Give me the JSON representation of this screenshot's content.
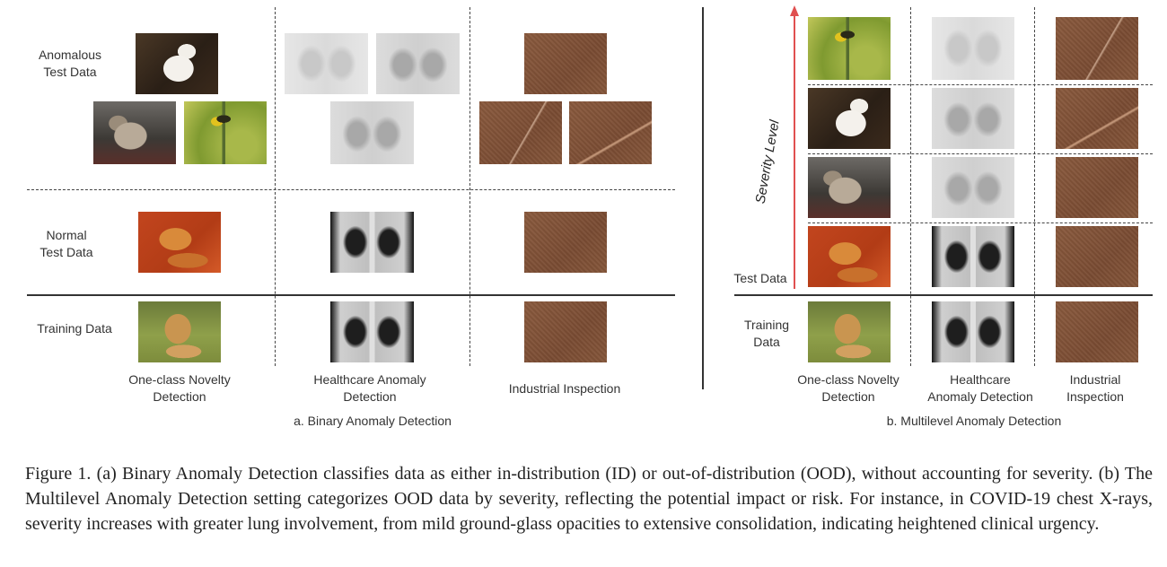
{
  "panel_a": {
    "row_labels": {
      "anomalous": "Anomalous\nTest Data",
      "normal": "Normal\nTest Data",
      "training": "Training Data"
    },
    "columns": [
      "One-class Novelty\nDetection",
      "Healthcare Anomaly\nDetection",
      "Industrial Inspection"
    ],
    "title": "a. Binary Anomaly Detection"
  },
  "panel_b": {
    "axis_label": "Severity Level",
    "test_label": "Test Data",
    "training_label": "Training\nData",
    "columns": [
      "One-class Novelty\nDetection",
      "Healthcare\nAnomaly Detection",
      "Industrial\nInspection"
    ],
    "title": "b. Multilevel Anomaly Detection"
  },
  "caption": "Figure 1.  (a) Binary Anomaly Detection classifies data as either in-distribution (ID) or out-of-distribution (OOD), without accounting for severity. (b) The Multilevel Anomaly Detection setting categorizes OOD data by severity, reflecting the potential impact or risk. For instance, in COVID-19 chest X-rays, severity increases with greater lung involvement, from mild ground-glass opacities to extensive consolidation, indicating heightened clinical urgency.",
  "colors": {
    "arrow": "#e05050",
    "fabric": "#7e5037"
  },
  "image_names": [
    "white-cat-image",
    "shaggy-dog-image",
    "goldfinch-bird-image",
    "lying-dog-image",
    "golden-retriever-image",
    "chest-xray-image",
    "fabric-texture-image"
  ]
}
